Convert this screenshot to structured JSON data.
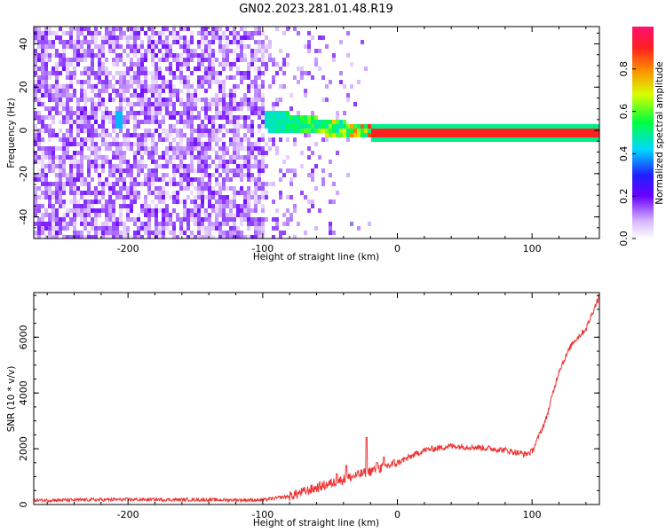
{
  "title": "GN02.2023.281.01.48.R19",
  "colors": {
    "snr_line": "#ee3333",
    "spectrum_main": "#7a22ee",
    "axis": "#000000"
  },
  "chart_data": [
    {
      "type": "heatmap",
      "title": "GN02.2023.281.01.48.R19",
      "xlabel": "Height of straight line (km)",
      "ylabel": "Frequency (Hz)",
      "xlim": [
        -270,
        150
      ],
      "ylim": [
        -50,
        48
      ],
      "x_ticks": [
        -200,
        -100,
        0,
        100
      ],
      "x_tick_labels": [
        "-200",
        "-100",
        "0",
        "100"
      ],
      "y_ticks": [
        -40,
        -20,
        0,
        20,
        40
      ],
      "y_tick_labels": [
        "-40",
        "-20",
        "0",
        "20",
        "40"
      ],
      "colorbar": {
        "label": "Normalized spectral amplitude",
        "range": [
          0,
          1
        ],
        "ticks": [
          0.0,
          0.2,
          0.4,
          0.6,
          0.8
        ],
        "tick_labels": [
          "0.0",
          "0.2",
          "0.4",
          "0.6",
          "0.8"
        ],
        "colormap": "rainbow (white-purple-blue-cyan-green-yellow-red-magenta)"
      },
      "features": {
        "noise_region_x": [
          -270,
          -100
        ],
        "noise_amplitude": 0.15,
        "transition_region_x": [
          -100,
          -20
        ],
        "carrier_band_x": [
          -20,
          150
        ],
        "carrier_frequency": 0,
        "carrier_amplitude": 0.9,
        "spot_x": -208,
        "spot_frequency": 6
      }
    },
    {
      "type": "line",
      "xlabel": "Height of straight line (km)",
      "ylabel": "SNR (10 * v/v)",
      "xlim": [
        -270,
        150
      ],
      "ylim": [
        0,
        7600
      ],
      "x_ticks": [
        -200,
        -100,
        0,
        100
      ],
      "x_tick_labels": [
        "-200",
        "-100",
        "0",
        "100"
      ],
      "y_ticks": [
        0,
        2000,
        4000,
        6000
      ],
      "y_tick_labels": [
        "0",
        "2000",
        "4000",
        "6000"
      ],
      "series": [
        {
          "x": [
            -270,
            -200,
            -150,
            -100,
            -80,
            -60,
            -40,
            -20,
            0,
            20,
            40,
            60,
            80,
            95,
            100,
            110,
            120,
            130,
            140,
            150
          ],
          "values": [
            150,
            180,
            170,
            160,
            300,
            600,
            900,
            1200,
            1500,
            1950,
            2100,
            2050,
            1950,
            1800,
            1900,
            3000,
            4800,
            5800,
            6300,
            7500
          ]
        }
      ],
      "spikes": [
        [
          -45,
          1100
        ],
        [
          -38,
          1400
        ],
        [
          -23,
          2400
        ],
        [
          -15,
          1500
        ],
        [
          -10,
          1700
        ]
      ]
    }
  ]
}
